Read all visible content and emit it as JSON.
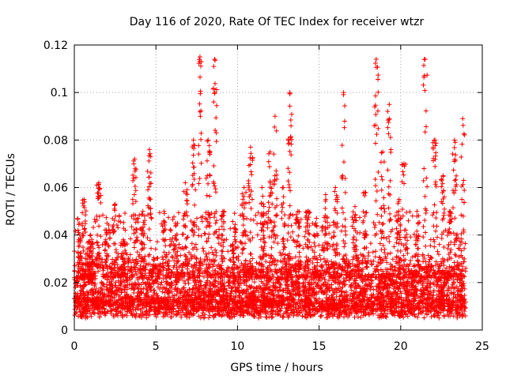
{
  "chart_data": {
    "type": "scatter",
    "title": "Day 116 of 2020, Rate Of TEC Index for receiver wtzr",
    "xlabel": "GPS time / hours",
    "ylabel": "ROTI / TECUs",
    "xlim": [
      0,
      25
    ],
    "ylim": [
      0,
      0.12
    ],
    "x_ticks": [
      0,
      5,
      10,
      15,
      20,
      25
    ],
    "x_tick_labels": [
      "0",
      "5",
      "10",
      "15",
      "20",
      "25"
    ],
    "y_ticks": [
      0,
      0.02,
      0.04,
      0.06,
      0.08,
      0.1,
      0.12
    ],
    "y_tick_labels": [
      "0",
      "0.02",
      "0.04",
      "0.06",
      "0.08",
      "0.1",
      "0.12"
    ],
    "grid": true,
    "marker": "+",
    "series": [
      {
        "name": "ROTI",
        "color": "#ff0000",
        "time_range_hours": [
          0,
          24
        ],
        "baseline_range": [
          0.005,
          0.03
        ],
        "peaks": [
          {
            "x": 0.3,
            "y": 0.045
          },
          {
            "x": 0.6,
            "y": 0.055
          },
          {
            "x": 1.0,
            "y": 0.04
          },
          {
            "x": 1.5,
            "y": 0.062
          },
          {
            "x": 2.0,
            "y": 0.045
          },
          {
            "x": 2.5,
            "y": 0.053
          },
          {
            "x": 3.0,
            "y": 0.038
          },
          {
            "x": 3.7,
            "y": 0.072
          },
          {
            "x": 4.2,
            "y": 0.05
          },
          {
            "x": 4.6,
            "y": 0.076
          },
          {
            "x": 5.5,
            "y": 0.05
          },
          {
            "x": 6.2,
            "y": 0.045
          },
          {
            "x": 6.8,
            "y": 0.062
          },
          {
            "x": 7.3,
            "y": 0.08
          },
          {
            "x": 7.7,
            "y": 0.115
          },
          {
            "x": 8.2,
            "y": 0.08
          },
          {
            "x": 8.6,
            "y": 0.114
          },
          {
            "x": 9.1,
            "y": 0.05
          },
          {
            "x": 9.8,
            "y": 0.043
          },
          {
            "x": 10.4,
            "y": 0.06
          },
          {
            "x": 10.8,
            "y": 0.077
          },
          {
            "x": 11.5,
            "y": 0.06
          },
          {
            "x": 12.0,
            "y": 0.075
          },
          {
            "x": 12.3,
            "y": 0.09
          },
          {
            "x": 12.8,
            "y": 0.06
          },
          {
            "x": 13.2,
            "y": 0.1
          },
          {
            "x": 13.7,
            "y": 0.05
          },
          {
            "x": 14.3,
            "y": 0.05
          },
          {
            "x": 14.8,
            "y": 0.045
          },
          {
            "x": 15.4,
            "y": 0.057
          },
          {
            "x": 16.0,
            "y": 0.06
          },
          {
            "x": 16.5,
            "y": 0.1
          },
          {
            "x": 17.2,
            "y": 0.052
          },
          {
            "x": 17.8,
            "y": 0.058
          },
          {
            "x": 18.5,
            "y": 0.114
          },
          {
            "x": 18.9,
            "y": 0.075
          },
          {
            "x": 19.3,
            "y": 0.095
          },
          {
            "x": 19.9,
            "y": 0.055
          },
          {
            "x": 20.2,
            "y": 0.07
          },
          {
            "x": 21.0,
            "y": 0.05
          },
          {
            "x": 21.5,
            "y": 0.114
          },
          {
            "x": 22.1,
            "y": 0.08
          },
          {
            "x": 22.6,
            "y": 0.065
          },
          {
            "x": 23.0,
            "y": 0.05
          },
          {
            "x": 23.3,
            "y": 0.08
          },
          {
            "x": 23.8,
            "y": 0.089
          }
        ]
      }
    ]
  }
}
